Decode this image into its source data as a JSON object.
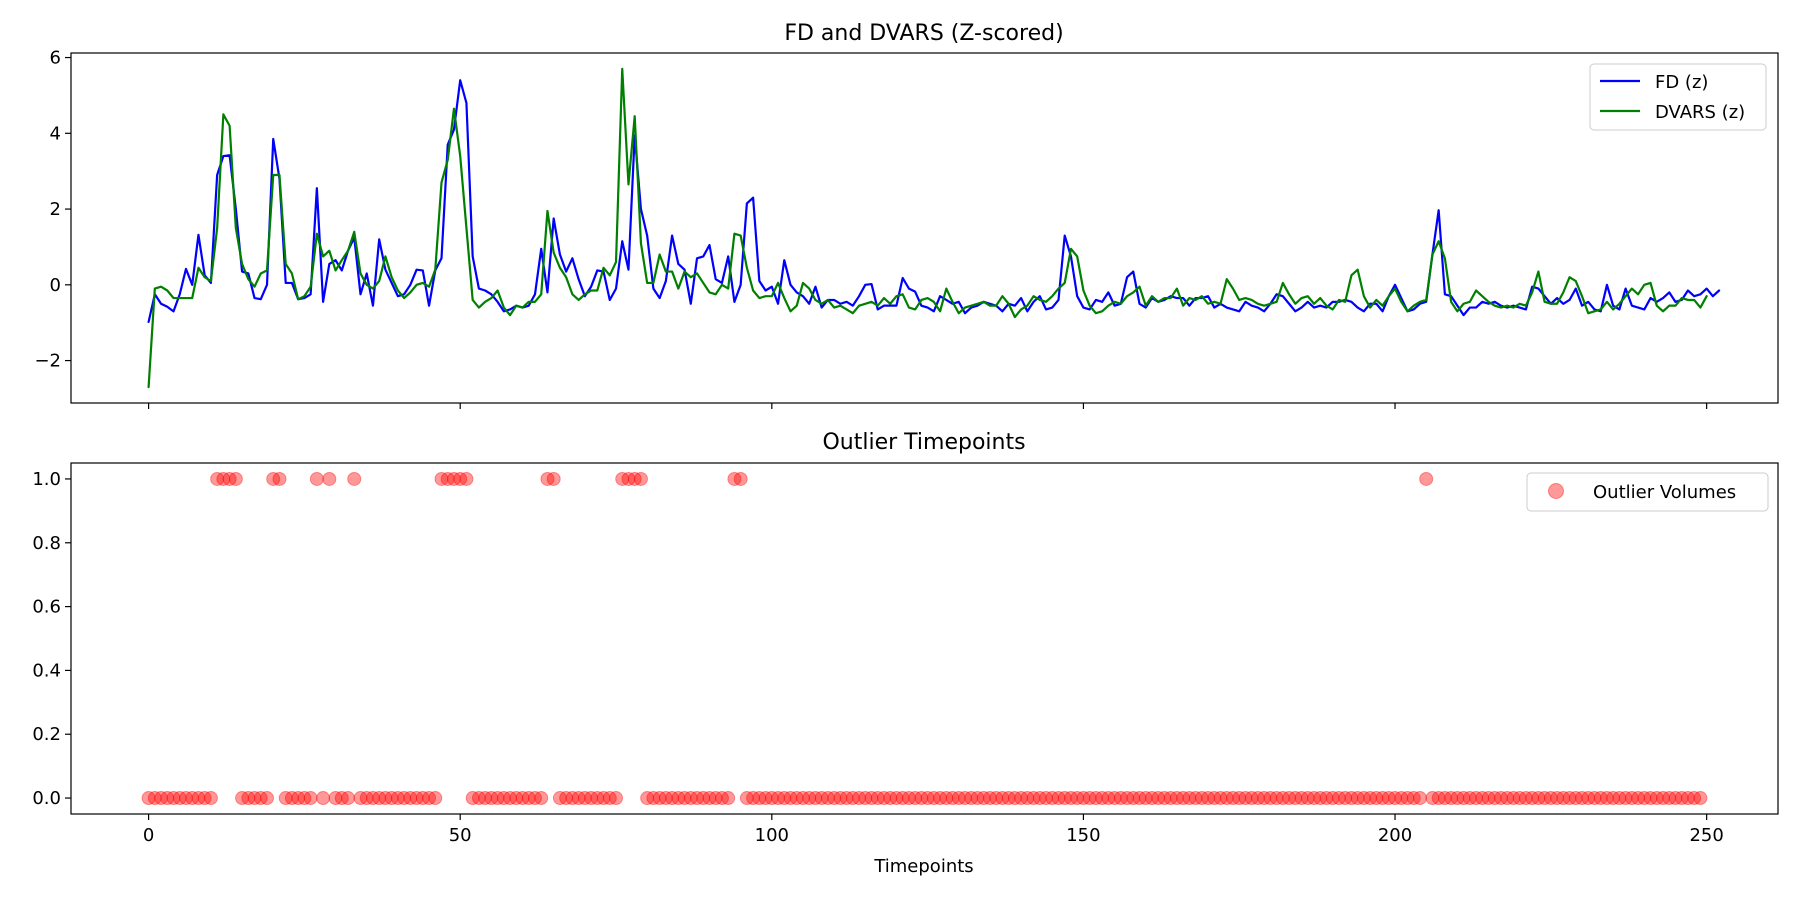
{
  "chart_data": [
    {
      "type": "line",
      "title": "FD and DVARS (Z-scored)",
      "xlabel": "",
      "ylabel": "",
      "xlim": [
        -12.45,
        261.45
      ],
      "ylim": [
        -3.12,
        6.12
      ],
      "yticks": [
        -2,
        0,
        2,
        4,
        6
      ],
      "ytick_labels": [
        "−2",
        "0",
        "2",
        "4",
        "6"
      ],
      "xticks": [
        0,
        50,
        100,
        150,
        200,
        250
      ],
      "legend_position": "top-right",
      "series": [
        {
          "name": "FD (z)",
          "color": "#0000ff",
          "values": [
            -0.98,
            -0.25,
            -0.5,
            -0.58,
            -0.7,
            -0.25,
            0.42,
            0.0,
            1.32,
            0.25,
            0.05,
            2.9,
            3.4,
            3.42,
            2.0,
            0.35,
            0.3,
            -0.35,
            -0.38,
            0.0,
            3.85,
            2.8,
            0.05,
            0.05,
            -0.38,
            -0.35,
            -0.25,
            2.55,
            -0.45,
            0.55,
            0.65,
            0.38,
            0.9,
            1.25,
            -0.25,
            0.3,
            -0.55,
            1.2,
            0.4,
            0.05,
            -0.3,
            -0.25,
            0.0,
            0.4,
            0.38,
            -0.55,
            0.38,
            0.7,
            3.7,
            4.1,
            5.4,
            4.8,
            0.75,
            -0.1,
            -0.15,
            -0.25,
            -0.45,
            -0.7,
            -0.65,
            -0.55,
            -0.6,
            -0.55,
            -0.25,
            0.95,
            -0.2,
            1.75,
            0.8,
            0.35,
            0.7,
            0.15,
            -0.3,
            -0.05,
            0.38,
            0.35,
            -0.4,
            -0.1,
            1.15,
            0.4,
            3.95,
            2.0,
            1.3,
            -0.1,
            -0.35,
            0.1,
            1.3,
            0.55,
            0.4,
            -0.5,
            0.7,
            0.75,
            1.05,
            0.15,
            0.05,
            0.75,
            -0.45,
            0.0,
            2.15,
            2.3,
            0.1,
            -0.15,
            -0.05,
            -0.5,
            0.65,
            0.0,
            -0.2,
            -0.3,
            -0.5,
            -0.05,
            -0.6,
            -0.4,
            -0.4,
            -0.5,
            -0.45,
            -0.55,
            -0.3,
            0.0,
            0.02,
            -0.65,
            -0.55,
            -0.55,
            -0.55,
            0.18,
            -0.1,
            -0.18,
            -0.55,
            -0.6,
            -0.7,
            -0.3,
            -0.4,
            -0.5,
            -0.45,
            -0.75,
            -0.6,
            -0.55,
            -0.45,
            -0.5,
            -0.55,
            -0.7,
            -0.5,
            -0.55,
            -0.35,
            -0.7,
            -0.45,
            -0.3,
            -0.65,
            -0.6,
            -0.4,
            1.3,
            0.75,
            -0.3,
            -0.6,
            -0.65,
            -0.4,
            -0.45,
            -0.2,
            -0.55,
            -0.5,
            0.2,
            0.35,
            -0.5,
            -0.6,
            -0.35,
            -0.45,
            -0.4,
            -0.3,
            -0.35,
            -0.35,
            -0.55,
            -0.35,
            -0.35,
            -0.3,
            -0.6,
            -0.5,
            -0.6,
            -0.65,
            -0.7,
            -0.45,
            -0.55,
            -0.6,
            -0.7,
            -0.5,
            -0.25,
            -0.3,
            -0.5,
            -0.7,
            -0.6,
            -0.45,
            -0.6,
            -0.55,
            -0.6,
            -0.45,
            -0.45,
            -0.4,
            -0.45,
            -0.6,
            -0.7,
            -0.5,
            -0.5,
            -0.7,
            -0.3,
            0.0,
            -0.35,
            -0.7,
            -0.65,
            -0.5,
            -0.45,
            0.8,
            1.97,
            -0.25,
            -0.3,
            -0.55,
            -0.8,
            -0.6,
            -0.6,
            -0.45,
            -0.5,
            -0.45,
            -0.55,
            -0.6,
            -0.55,
            -0.6,
            -0.65,
            -0.05,
            -0.1,
            -0.3,
            -0.5,
            -0.35,
            -0.5,
            -0.4,
            -0.1,
            -0.55,
            -0.45,
            -0.65,
            -0.7,
            0.0,
            -0.55,
            -0.65,
            -0.1,
            -0.55,
            -0.6,
            -0.65,
            -0.35,
            -0.45,
            -0.35,
            -0.2,
            -0.45,
            -0.4,
            -0.15,
            -0.3,
            -0.25,
            -0.1,
            -0.3,
            -0.15
          ]
        },
        {
          "name": "DVARS (z)",
          "color": "#008000",
          "values": [
            -2.7,
            -0.1,
            -0.05,
            -0.15,
            -0.35,
            -0.35,
            -0.35,
            -0.35,
            0.45,
            0.2,
            0.1,
            1.5,
            4.5,
            4.2,
            1.5,
            0.55,
            0.15,
            -0.05,
            0.3,
            0.38,
            2.9,
            2.9,
            0.55,
            0.3,
            -0.38,
            -0.3,
            -0.05,
            1.35,
            0.75,
            0.9,
            0.38,
            0.65,
            0.9,
            1.4,
            0.3,
            0.0,
            -0.1,
            0.1,
            0.75,
            0.2,
            -0.15,
            -0.35,
            -0.2,
            0.0,
            0.05,
            -0.05,
            0.4,
            2.7,
            3.3,
            4.65,
            3.4,
            1.5,
            -0.4,
            -0.6,
            -0.45,
            -0.35,
            -0.15,
            -0.6,
            -0.8,
            -0.55,
            -0.6,
            -0.45,
            -0.45,
            -0.25,
            1.95,
            0.85,
            0.45,
            0.2,
            -0.25,
            -0.4,
            -0.25,
            -0.15,
            -0.15,
            0.45,
            0.25,
            0.6,
            5.7,
            2.65,
            4.45,
            1.1,
            0.05,
            0.05,
            0.8,
            0.35,
            0.35,
            -0.1,
            0.35,
            0.2,
            0.3,
            0.05,
            -0.2,
            -0.25,
            0.0,
            -0.1,
            1.35,
            1.3,
            0.45,
            -0.15,
            -0.35,
            -0.3,
            -0.3,
            0.05,
            -0.35,
            -0.7,
            -0.55,
            0.05,
            -0.1,
            -0.4,
            -0.5,
            -0.4,
            -0.6,
            -0.55,
            -0.65,
            -0.75,
            -0.55,
            -0.5,
            -0.45,
            -0.55,
            -0.35,
            -0.5,
            -0.3,
            -0.25,
            -0.6,
            -0.65,
            -0.4,
            -0.35,
            -0.45,
            -0.7,
            -0.1,
            -0.45,
            -0.75,
            -0.6,
            -0.55,
            -0.5,
            -0.45,
            -0.55,
            -0.55,
            -0.3,
            -0.5,
            -0.85,
            -0.65,
            -0.55,
            -0.3,
            -0.4,
            -0.45,
            -0.3,
            -0.1,
            0.05,
            0.95,
            0.75,
            -0.15,
            -0.55,
            -0.75,
            -0.7,
            -0.55,
            -0.45,
            -0.5,
            -0.3,
            -0.2,
            -0.05,
            -0.55,
            -0.3,
            -0.45,
            -0.35,
            -0.35,
            -0.1,
            -0.55,
            -0.35,
            -0.4,
            -0.3,
            -0.5,
            -0.45,
            -0.5,
            0.15,
            -0.1,
            -0.4,
            -0.35,
            -0.4,
            -0.5,
            -0.55,
            -0.5,
            -0.45,
            0.05,
            -0.25,
            -0.5,
            -0.35,
            -0.3,
            -0.5,
            -0.35,
            -0.55,
            -0.65,
            -0.4,
            -0.45,
            0.25,
            0.4,
            -0.3,
            -0.6,
            -0.4,
            -0.55,
            -0.3,
            -0.1,
            -0.45,
            -0.7,
            -0.55,
            -0.45,
            -0.4,
            0.8,
            1.15,
            0.7,
            -0.45,
            -0.7,
            -0.5,
            -0.45,
            -0.15,
            -0.3,
            -0.45,
            -0.55,
            -0.6,
            -0.55,
            -0.6,
            -0.5,
            -0.55,
            -0.2,
            0.35,
            -0.45,
            -0.5,
            -0.5,
            -0.2,
            0.2,
            0.1,
            -0.3,
            -0.75,
            -0.7,
            -0.65,
            -0.45,
            -0.65,
            -0.5,
            -0.3,
            -0.1,
            -0.25,
            0.0,
            0.05,
            -0.55,
            -0.7,
            -0.55,
            -0.55,
            -0.35,
            -0.4,
            -0.4,
            -0.6,
            -0.3
          ]
        }
      ]
    },
    {
      "type": "scatter",
      "title": "Outlier Timepoints",
      "xlabel": "Timepoints",
      "ylabel": "",
      "xlim": [
        -12.45,
        261.45
      ],
      "ylim": [
        -0.05,
        1.05
      ],
      "yticks": [
        0.0,
        0.2,
        0.4,
        0.6,
        0.8,
        1.0
      ],
      "ytick_labels": [
        "0.0",
        "0.2",
        "0.4",
        "0.6",
        "0.8",
        "1.0"
      ],
      "xticks": [
        0,
        50,
        100,
        150,
        200,
        250
      ],
      "xtick_labels": [
        "0",
        "50",
        "100",
        "150",
        "200",
        "250"
      ],
      "legend_position": "top-right",
      "series": [
        {
          "name": "Outlier Volumes",
          "color": "#ff0000",
          "alpha": 0.4,
          "n_points": 250,
          "outlier_indices": [
            11,
            12,
            13,
            14,
            20,
            21,
            27,
            29,
            33,
            47,
            48,
            49,
            50,
            51,
            64,
            65,
            76,
            77,
            78,
            79,
            94,
            95,
            205
          ]
        }
      ]
    }
  ]
}
